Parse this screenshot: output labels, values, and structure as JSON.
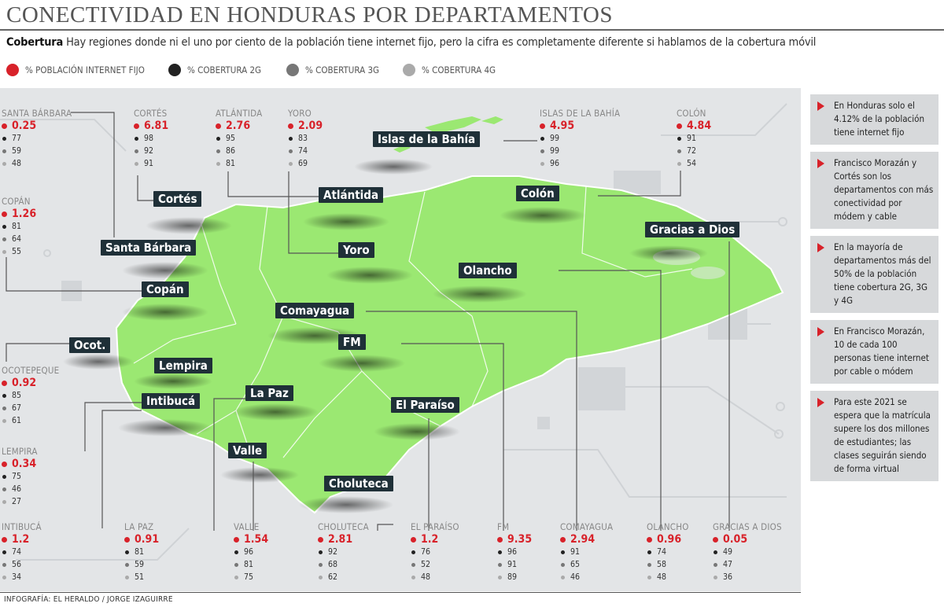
{
  "title": "CONECTIVIDAD EN HONDURAS POR DEPARTAMENTOS",
  "subtitle": {
    "lead": "Cobertura",
    "text": " Hay regiones donde ni el uno por ciento de la población tiene internet fijo, pero la cifra es completamente diferente si hablamos de la cobertura móvil"
  },
  "legend": [
    {
      "label": "% POBLACIÓN INTERNET FIJO",
      "color": "#d8222a"
    },
    {
      "label": "% COBERTURA 2G",
      "color": "#222222"
    },
    {
      "label": "% COBERTURA 3G",
      "color": "#777777"
    },
    {
      "label": "% COBERTURA 4G",
      "color": "#aaaaaa"
    }
  ],
  "map_labels": {
    "islas": "Islas de la Bahía",
    "cortes": "Cortés",
    "atlantida": "Atlántida",
    "colon": "Colón",
    "gracias": "Gracias a Dios",
    "santabarbara": "Santa Bárbara",
    "yoro": "Yoro",
    "olancho": "Olancho",
    "copan": "Copán",
    "comayagua": "Comayagua",
    "ocot": "Ocot.",
    "fm": "FM",
    "lempira": "Lempira",
    "intibuca": "Intibucá",
    "lapaz": "La Paz",
    "elparaiso": "El Paraíso",
    "valle": "Valle",
    "choluteca": "Choluteca"
  },
  "departments": {
    "santabarbara": {
      "name": "SANTA BÁRBARA",
      "fijo": "0.25",
      "g2": "77",
      "g3": "59",
      "g4": "48"
    },
    "cortes": {
      "name": "CORTÉS",
      "fijo": "6.81",
      "g2": "98",
      "g3": "92",
      "g4": "91"
    },
    "atlantida": {
      "name": "ATLÁNTIDA",
      "fijo": "2.76",
      "g2": "95",
      "g3": "86",
      "g4": "81"
    },
    "yoro": {
      "name": "YORO",
      "fijo": "2.09",
      "g2": "83",
      "g3": "74",
      "g4": "69"
    },
    "islas": {
      "name": "ISLAS DE LA BAHÍA",
      "fijo": "4.95",
      "g2": "99",
      "g3": "99",
      "g4": "96"
    },
    "colon": {
      "name": "COLÓN",
      "fijo": "4.84",
      "g2": "91",
      "g3": "72",
      "g4": "54"
    },
    "copan": {
      "name": "COPÁN",
      "fijo": "1.26",
      "g2": "81",
      "g3": "64",
      "g4": "55"
    },
    "ocotepeque": {
      "name": "OCOTEPEQUE",
      "fijo": "0.92",
      "g2": "85",
      "g3": "67",
      "g4": "61"
    },
    "lempira": {
      "name": "LEMPIRA",
      "fijo": "0.34",
      "g2": "75",
      "g3": "46",
      "g4": "27"
    },
    "intibuca": {
      "name": "INTIBUCÁ",
      "fijo": "1.2",
      "g2": "74",
      "g3": "56",
      "g4": "34"
    },
    "lapaz": {
      "name": "LA PAZ",
      "fijo": "0.91",
      "g2": "81",
      "g3": "59",
      "g4": "51"
    },
    "valle": {
      "name": "VALLE",
      "fijo": "1.54",
      "g2": "96",
      "g3": "81",
      "g4": "75"
    },
    "choluteca": {
      "name": "CHOLUTECA",
      "fijo": "2.81",
      "g2": "92",
      "g3": "68",
      "g4": "62"
    },
    "elparaiso": {
      "name": "EL PARAÍSO",
      "fijo": "1.2",
      "g2": "76",
      "g3": "52",
      "g4": "48"
    },
    "fm": {
      "name": "FM",
      "fijo": "9.35",
      "g2": "96",
      "g3": "91",
      "g4": "89"
    },
    "comayagua": {
      "name": "COMAYAGUA",
      "fijo": "2.94",
      "g2": "91",
      "g3": "65",
      "g4": "46"
    },
    "olancho": {
      "name": "OLANCHO",
      "fijo": "0.96",
      "g2": "74",
      "g3": "58",
      "g4": "48"
    },
    "gracias": {
      "name": "GRACIAS A DIOS",
      "fijo": "0.05",
      "g2": "49",
      "g3": "47",
      "g4": "36"
    }
  },
  "sidebar": [
    "En Honduras solo el 4.12% de la población tiene internet fijo",
    "Francisco Morazán y Cortés son los departamentos con más conectividad por módem y cable",
    "En la mayoría de departamentos más del 50% de la población tiene cobertura 2G, 3G y 4G",
    "En Francisco Morazán, 10 de cada 100 personas tiene internet por cable o módem",
    "Para este 2021 se espera que la matrícula supere los dos millones de estudiantes; las clases seguirán siendo de forma virtual"
  ],
  "credit": "INFOGRAFÍA: EL HERALDO / JORGE IZAGUIRRE",
  "colors": {
    "map_land": "#9be872",
    "label_bg": "#1f3038",
    "accent_red": "#d8222a"
  }
}
